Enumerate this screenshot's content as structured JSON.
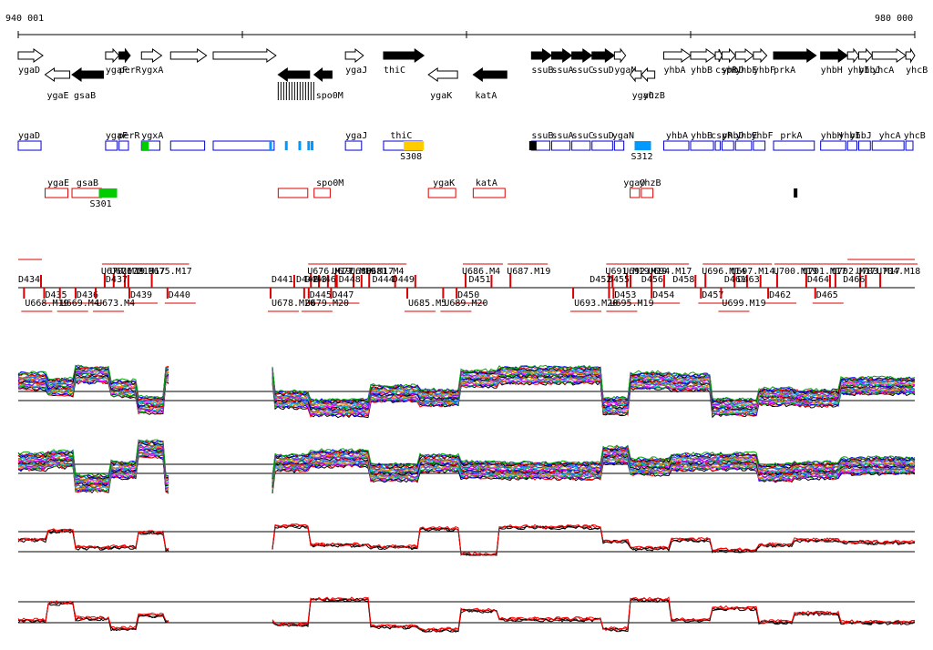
{
  "ruler": {
    "start_label": "940 001",
    "end_label": "980 000",
    "start": 940001,
    "end": 980000
  },
  "genes": [
    {
      "name": "ygaD",
      "start": 940001,
      "end": 941100,
      "strand": "+",
      "filled": false
    },
    {
      "name": "ygaE",
      "start": 941200,
      "end": 942300,
      "strand": "-",
      "filled": false
    },
    {
      "name": "gsaB",
      "start": 942400,
      "end": 943800,
      "strand": "-",
      "filled": true
    },
    {
      "name": "ygaF",
      "start": 943900,
      "end": 944500,
      "strand": "+",
      "filled": false
    },
    {
      "name": "perR",
      "start": 944500,
      "end": 945000,
      "strand": "+",
      "filled": true
    },
    {
      "name": "ygxA",
      "start": 945500,
      "end": 946400,
      "strand": "+",
      "filled": false
    },
    {
      "name": "",
      "start": 946800,
      "end": 948400,
      "strand": "+",
      "filled": false
    },
    {
      "name": "",
      "start": 948700,
      "end": 951500,
      "strand": "+",
      "filled": false
    },
    {
      "name": "",
      "start": 951600,
      "end": 953000,
      "strand": "-",
      "filled": true
    },
    {
      "name": "spo0M",
      "start": 953200,
      "end": 954000,
      "strand": "-",
      "filled": true
    },
    {
      "name": "ygaJ",
      "start": 954600,
      "end": 955400,
      "strand": "+",
      "filled": false
    },
    {
      "name": "thiC",
      "start": 956300,
      "end": 958100,
      "strand": "+",
      "filled": true
    },
    {
      "name": "ygaK",
      "start": 958300,
      "end": 959600,
      "strand": "-",
      "filled": false
    },
    {
      "name": "katA",
      "start": 960300,
      "end": 961800,
      "strand": "-",
      "filled": true
    },
    {
      "name": "ssuB",
      "start": 962900,
      "end": 963800,
      "strand": "+",
      "filled": true
    },
    {
      "name": "ssuA",
      "start": 963800,
      "end": 964700,
      "strand": "+",
      "filled": true
    },
    {
      "name": "ssuC",
      "start": 964700,
      "end": 965600,
      "strand": "+",
      "filled": true
    },
    {
      "name": "ssuD",
      "start": 965600,
      "end": 966600,
      "strand": "+",
      "filled": true
    },
    {
      "name": "ygaN",
      "start": 966600,
      "end": 967100,
      "strand": "+",
      "filled": false
    },
    {
      "name": "ygaO",
      "start": 967300,
      "end": 967800,
      "strand": "-",
      "filled": false
    },
    {
      "name": "yhzB",
      "start": 967800,
      "end": 968400,
      "strand": "-",
      "filled": false
    },
    {
      "name": "yhbA",
      "start": 968800,
      "end": 970000,
      "strand": "+",
      "filled": false
    },
    {
      "name": "yhbB",
      "start": 970000,
      "end": 971100,
      "strand": "+",
      "filled": false
    },
    {
      "name": "cspR",
      "start": 971100,
      "end": 971400,
      "strand": "+",
      "filled": false
    },
    {
      "name": "yhbD",
      "start": 971400,
      "end": 972000,
      "strand": "+",
      "filled": false
    },
    {
      "name": "yhbE",
      "start": 972000,
      "end": 972800,
      "strand": "+",
      "filled": false
    },
    {
      "name": "yhbF",
      "start": 972800,
      "end": 973400,
      "strand": "+",
      "filled": false
    },
    {
      "name": "prkA",
      "start": 973700,
      "end": 975600,
      "strand": "+",
      "filled": true
    },
    {
      "name": "yhbH",
      "start": 975800,
      "end": 977000,
      "strand": "+",
      "filled": true
    },
    {
      "name": "yhbI",
      "start": 977000,
      "end": 977500,
      "strand": "+",
      "filled": false
    },
    {
      "name": "yhbJ",
      "start": 977500,
      "end": 978100,
      "strand": "+",
      "filled": false
    },
    {
      "name": "yhcA",
      "start": 978100,
      "end": 979600,
      "strand": "+",
      "filled": false
    },
    {
      "name": "yhcB",
      "start": 979600,
      "end": 980000,
      "strand": "+",
      "filled": false
    }
  ],
  "operon_plus_labels": [
    {
      "name": "ygaD",
      "at": 940001
    },
    {
      "name": "ygaF",
      "at": 943900
    },
    {
      "name": "perR",
      "at": 944450
    },
    {
      "name": "ygxA",
      "at": 945500
    },
    {
      "name": "ygaJ",
      "at": 954600
    },
    {
      "name": "thiC",
      "at": 956600
    },
    {
      "name": "ssuB",
      "at": 962900
    },
    {
      "name": "ssuA",
      "at": 963800
    },
    {
      "name": "ssuC",
      "at": 964700
    },
    {
      "name": "ssuD",
      "at": 965600
    },
    {
      "name": "ygaN",
      "at": 966500
    },
    {
      "name": "yhbA",
      "at": 968900
    },
    {
      "name": "yhbB",
      "at": 970000
    },
    {
      "name": "cspR",
      "at": 970900
    },
    {
      "name": "yhbD",
      "at": 971400
    },
    {
      "name": "yhbE",
      "at": 972000
    },
    {
      "name": "yhbF",
      "at": 972700
    },
    {
      "name": "prkA",
      "at": 974000
    },
    {
      "name": "yhbH",
      "at": 975800
    },
    {
      "name": "yhbI",
      "at": 976600
    },
    {
      "name": "yhbJ",
      "at": 977100
    },
    {
      "name": "yhcA",
      "at": 978400
    },
    {
      "name": "yhcB",
      "at": 979500
    }
  ],
  "operon_plus_tags": [
    {
      "name": "S308",
      "at": 957200
    },
    {
      "name": "S312",
      "at": 967500
    }
  ],
  "operon_minus_labels": [
    {
      "name": "ygaE",
      "at": 941300
    },
    {
      "name": "gsaB",
      "at": 942600
    },
    {
      "name": "spo0M",
      "at": 953300
    },
    {
      "name": "ygaK",
      "at": 958500
    },
    {
      "name": "katA",
      "at": 960400
    },
    {
      "name": "ygaO",
      "at": 967000
    },
    {
      "name": "yhzB",
      "at": 967700
    }
  ],
  "operon_minus_tags": [
    {
      "name": "S301",
      "at": 943600
    }
  ],
  "upper_probe_labels": [
    {
      "name": "U670.M19",
      "at": 943900
    },
    {
      "name": "U671.M19",
      "at": 944300
    },
    {
      "name": "U672.M17",
      "at": 944800
    },
    {
      "name": "U675.M17",
      "at": 946000
    },
    {
      "name": "U676.M19",
      "at": 953100
    },
    {
      "name": "U677.M19",
      "at": 954200
    },
    {
      "name": "U680.M17",
      "at": 955000
    },
    {
      "name": "U681.M4",
      "at": 955700
    },
    {
      "name": "U686.M4",
      "at": 960000
    },
    {
      "name": "U687.M19",
      "at": 962000
    },
    {
      "name": "U691.M19",
      "at": 966400
    },
    {
      "name": "U692.M19",
      "at": 967200
    },
    {
      "name": "U694.M17",
      "at": 968300
    },
    {
      "name": "U696.M14",
      "at": 970700
    },
    {
      "name": "U697.M14",
      "at": 972000
    },
    {
      "name": "U700.M19",
      "at": 973900
    },
    {
      "name": "U701.M17",
      "at": 975200
    },
    {
      "name": "U702.M17",
      "at": 976500
    },
    {
      "name": "U703.M17",
      "at": 977600
    },
    {
      "name": "U704.M18",
      "at": 978500
    }
  ],
  "down_labels": [
    {
      "name": "D434",
      "at": 940001
    },
    {
      "name": "D437",
      "at": 943900
    },
    {
      "name": "D441",
      "at": 951300
    },
    {
      "name": "D442",
      "at": 952400
    },
    {
      "name": "D443",
      "at": 952800
    },
    {
      "name": "D444",
      "at": 955800
    },
    {
      "name": "D446",
      "at": 953200
    },
    {
      "name": "D448",
      "at": 954300
    },
    {
      "name": "D449",
      "at": 956700
    },
    {
      "name": "D451",
      "at": 960100
    },
    {
      "name": "D452",
      "at": 965500
    },
    {
      "name": "D455",
      "at": 966300
    },
    {
      "name": "D456",
      "at": 967800
    },
    {
      "name": "D458",
      "at": 969200
    },
    {
      "name": "D461",
      "at": 971500
    },
    {
      "name": "D463",
      "at": 972100
    },
    {
      "name": "D464",
      "at": 975200
    },
    {
      "name": "D466",
      "at": 976800
    }
  ],
  "lower_probe_labels": [
    {
      "name": "D435",
      "at": 941200
    },
    {
      "name": "D436",
      "at": 942600
    },
    {
      "name": "D439",
      "at": 945000
    },
    {
      "name": "D440",
      "at": 946700
    },
    {
      "name": "D445",
      "at": 953000
    },
    {
      "name": "D447",
      "at": 954000
    },
    {
      "name": "D450",
      "at": 959600
    },
    {
      "name": "D453",
      "at": 966600
    },
    {
      "name": "D454",
      "at": 968300
    },
    {
      "name": "D457",
      "at": 970500
    },
    {
      "name": "D462",
      "at": 973500
    },
    {
      "name": "D465",
      "at": 975600
    },
    {
      "name": "U668.M19",
      "at": 940300
    },
    {
      "name": "U669.M4",
      "at": 941900
    },
    {
      "name": "U673.M4",
      "at": 943500
    },
    {
      "name": "U678.M20",
      "at": 951300
    },
    {
      "name": "U679.M20",
      "at": 952800
    },
    {
      "name": "U685.M5",
      "at": 957400
    },
    {
      "name": "U689.M20",
      "at": 959000
    },
    {
      "name": "U693.M20",
      "at": 964800
    },
    {
      "name": "U695.M19",
      "at": 966400
    },
    {
      "name": "U699.M19",
      "at": 971400
    }
  ],
  "tracks": [
    {
      "id": "top-multi",
      "kind": "multi",
      "colors": [
        "#000000",
        "#ff0000",
        "#0000ff",
        "#00aa00",
        "#ff00ff",
        "#00cccc",
        "#ff8800",
        "#8800ff",
        "#888800",
        "#0088ff"
      ]
    },
    {
      "id": "mid-multi",
      "kind": "multi",
      "colors": [
        "#000000",
        "#ff0000",
        "#0000ff",
        "#00aa00",
        "#ff00ff",
        "#00cccc",
        "#ff8800",
        "#8800ff",
        "#888800",
        "#0088ff"
      ]
    },
    {
      "id": "upper-pair",
      "kind": "pair",
      "colors": [
        "#000000",
        "#ff0000"
      ]
    },
    {
      "id": "lower-pair",
      "kind": "pair",
      "colors": [
        "#000000",
        "#ff0000"
      ]
    }
  ],
  "colors": {
    "operon_box": "#0000cc",
    "minus_box": "#dd0000",
    "green": "#00cc00",
    "yellow": "#ffcc00",
    "cyan": "#0099ff"
  }
}
